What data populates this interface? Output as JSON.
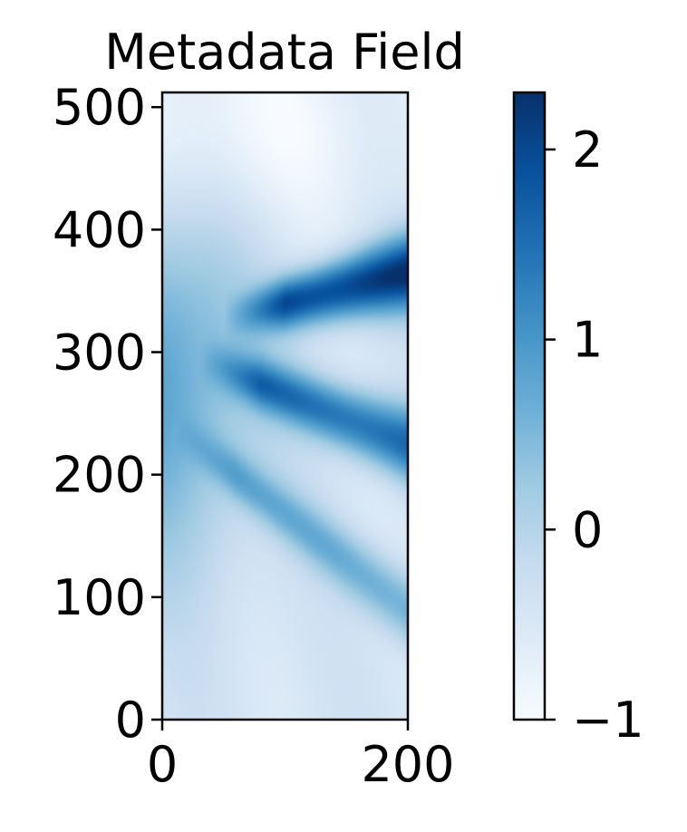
{
  "chart_data": {
    "type": "heatmap",
    "title": "Metadata Field",
    "xlabel": "",
    "ylabel": "",
    "xlim": [
      0,
      200
    ],
    "ylim": [
      0,
      512
    ],
    "x_ticks": [
      0,
      200
    ],
    "y_ticks": [
      0,
      100,
      200,
      300,
      400,
      500
    ],
    "colorbar": {
      "colormap": "Blues",
      "range": [
        -1,
        2.3
      ],
      "ticks": [
        -1,
        0,
        1,
        2
      ],
      "tick_labels": [
        "−1",
        "0",
        "1",
        "2"
      ]
    },
    "field_features": [
      {
        "kind": "band",
        "x_start": 60,
        "y_start": 330,
        "x_end": 200,
        "y_end": 365,
        "peak_value": 2.3
      },
      {
        "kind": "band",
        "x_start": 40,
        "y_start": 290,
        "x_end": 200,
        "y_end": 225,
        "peak_value": 1.6
      },
      {
        "kind": "band",
        "x_start": 20,
        "y_start": 230,
        "x_end": 200,
        "y_end": 90,
        "peak_value": 0.7
      },
      {
        "kind": "plume",
        "x_start": 0,
        "y_start": 280,
        "peak_value": 0.8
      },
      {
        "kind": "calm",
        "x_start": 60,
        "y_start": 480,
        "value": -1.0
      }
    ],
    "colors": {
      "cmap_stops": [
        "#f7fbff",
        "#deebf7",
        "#c6dbef",
        "#9ecae1",
        "#6baed6",
        "#4292c6",
        "#2171b5",
        "#08519c",
        "#08306b"
      ]
    }
  }
}
